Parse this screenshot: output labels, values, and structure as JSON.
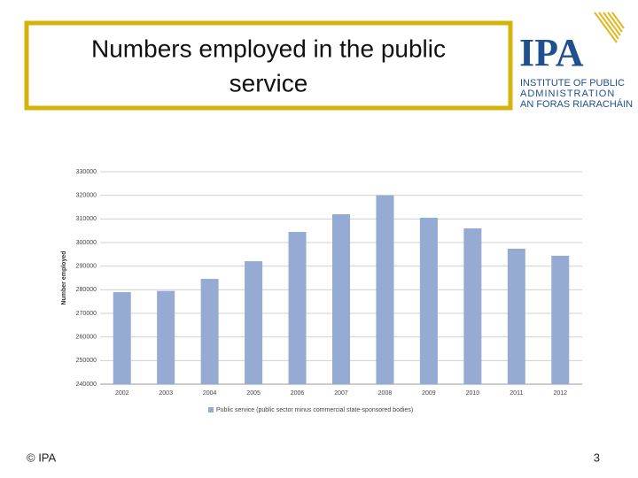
{
  "slide": {
    "title": [
      "Numbers employed in the public",
      "service"
    ],
    "logo": {
      "mark": "IPA",
      "lines": [
        "INSTITUTE OF PUBLIC",
        "ADMINISTRATION",
        "AN FORAS RIARACHÁIN"
      ]
    },
    "footer": {
      "copyright": "© IPA",
      "page": "3"
    }
  },
  "chart_data": {
    "type": "bar",
    "y_label": "Number employed",
    "categories": [
      "2002",
      "2003",
      "2004",
      "2005",
      "2006",
      "2007",
      "2008",
      "2009",
      "2010",
      "2011",
      "2012"
    ],
    "series": [
      {
        "name": "Public service (public sector minus commercial state-sponsored bodies)",
        "color": "#95abd3",
        "values": [
          279000,
          279500,
          284600,
          292100,
          304500,
          312000,
          320000,
          310500,
          306000,
          297400,
          294400
        ]
      }
    ],
    "ylim": [
      240000,
      330000
    ],
    "yticks": [
      240000,
      250000,
      260000,
      270000,
      280000,
      290000,
      300000,
      310000,
      320000,
      330000
    ],
    "grid": true
  }
}
